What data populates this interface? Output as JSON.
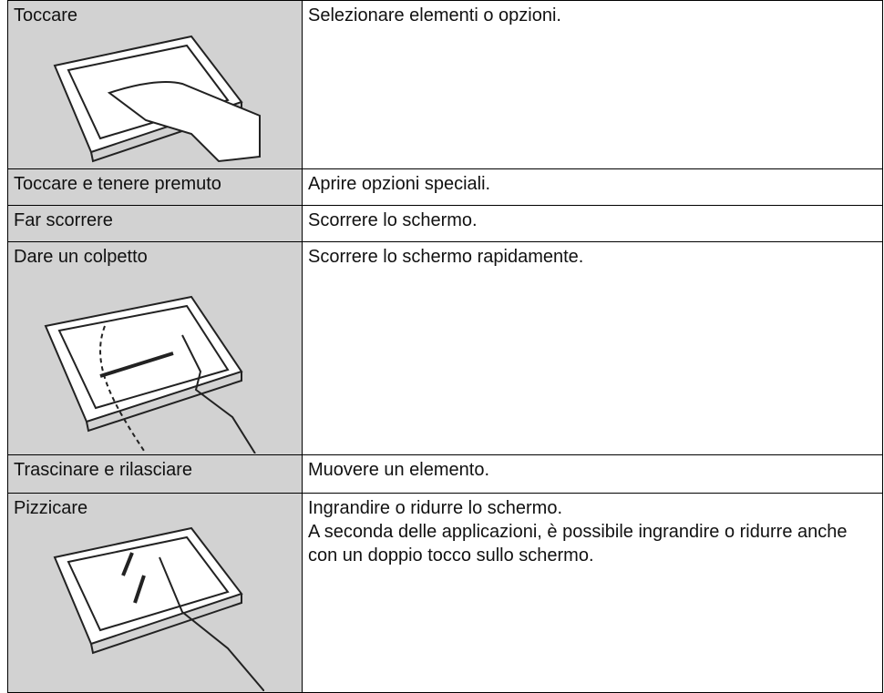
{
  "table": {
    "rows": [
      {
        "gesture": "Toccare",
        "description": [
          "Selezionare elementi o opzioni."
        ]
      },
      {
        "gesture": "Toccare e tenere premuto",
        "description": [
          "Aprire opzioni speciali."
        ]
      },
      {
        "gesture": "Far scorrere",
        "description": [
          "Scorrere lo schermo."
        ]
      },
      {
        "gesture": "Dare un colpetto",
        "description": [
          "Scorrere lo schermo rapidamente."
        ]
      },
      {
        "gesture": "Trascinare e rilasciare",
        "description": [
          "Muovere un elemento."
        ]
      },
      {
        "gesture": "Pizzicare",
        "description": [
          "Ingrandire o ridurre lo schermo.",
          "A seconda delle applicazioni, è possibile ingrandire o ridurre anche con un doppio tocco sullo schermo."
        ]
      }
    ]
  }
}
